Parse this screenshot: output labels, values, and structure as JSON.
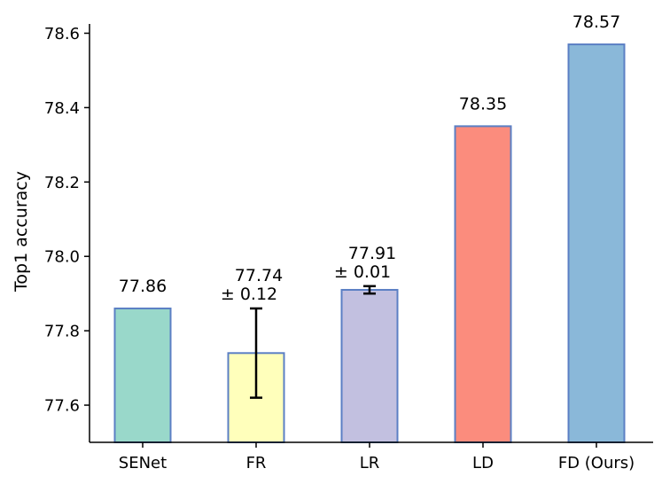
{
  "chart_data": {
    "type": "bar",
    "title": "",
    "xlabel": "",
    "ylabel": "Top1 accuracy",
    "ylim": [
      77.5,
      78.625
    ],
    "yticks": [
      77.6,
      77.8,
      78.0,
      78.2,
      78.4,
      78.6
    ],
    "ytick_labels": [
      "77.6",
      "77.8",
      "78.0",
      "78.2",
      "78.4",
      "78.6"
    ],
    "grid": false,
    "legend": "none",
    "categories": [
      "SENet",
      "FR",
      "LR",
      "LD",
      "FD (Ours)"
    ],
    "values": [
      77.86,
      77.74,
      77.91,
      78.35,
      78.57
    ],
    "errors": [
      null,
      0.12,
      0.01,
      null,
      null
    ],
    "bar_colors": [
      "#99d8ca",
      "#ffffbb",
      "#c2c0e0",
      "#fb8c7d",
      "#8ab8d9"
    ],
    "edge_color": "#5b7fc4",
    "data_labels": [
      [
        "77.86"
      ],
      [
        "77.74",
        "± 0.12"
      ],
      [
        "77.91",
        "± 0.01"
      ],
      [
        "78.35"
      ],
      [
        "78.57"
      ]
    ]
  }
}
